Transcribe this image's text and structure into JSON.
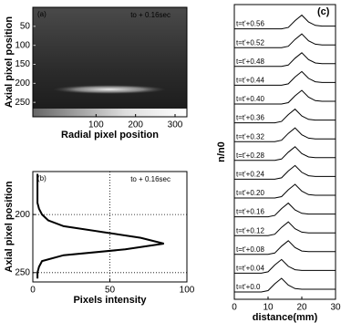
{
  "chart_data": [
    {
      "type": "image",
      "label": "(a)",
      "annotation": "to + 0.16sec",
      "xlabel": "Radial pixel position",
      "ylabel": "Axial pixel position",
      "xlim": [
        -60,
        330
      ],
      "ylim": [
        0,
        288
      ],
      "y_inverted": true,
      "xticks": [
        100,
        200,
        300
      ],
      "yticks": [
        50,
        100,
        150,
        200,
        250
      ]
    },
    {
      "type": "profile",
      "label": "(b)",
      "annotation": "to + 0.16sec",
      "xlabel": "Pixels intensity",
      "ylabel": "Axial pixel position",
      "xlim": [
        0,
        100
      ],
      "xticks": [
        0,
        50,
        100
      ],
      "ylim": [
        163,
        258
      ],
      "yticks": [
        200,
        250
      ],
      "y_inverted": true,
      "grid": true,
      "color": "#000000",
      "y": [
        165,
        170,
        175,
        180,
        185,
        190,
        195,
        200,
        205,
        210,
        215,
        220,
        225,
        230,
        235,
        240,
        245,
        250,
        255
      ],
      "values": [
        3,
        3,
        3,
        3,
        3,
        3,
        4,
        6,
        10,
        20,
        45,
        70,
        85,
        60,
        20,
        6,
        4,
        3,
        3
      ]
    },
    {
      "type": "ridgeline",
      "label": "(c)",
      "xlabel": "distance(mm)",
      "ylabel": "n/n0",
      "xlim": [
        0,
        30
      ],
      "xticks": [
        0,
        10,
        20,
        30
      ],
      "color": "#000000",
      "x": [
        0,
        2,
        4,
        6,
        8,
        10,
        12,
        14,
        16,
        18,
        20,
        22,
        24,
        26,
        28,
        30
      ],
      "series": [
        {
          "name": "t=t'+0.0",
          "values": [
            0,
            0,
            0,
            0,
            0,
            0.1,
            0.6,
            1,
            0.5,
            0.25,
            0.2,
            0.2,
            0.2,
            0.2,
            0.2,
            0.2
          ]
        },
        {
          "name": "t=t'+0.04",
          "values": [
            0,
            0,
            0,
            0,
            0,
            0.1,
            0.6,
            1,
            0.5,
            0.25,
            0.2,
            0.2,
            0.2,
            0.2,
            0.2,
            0.2
          ]
        },
        {
          "name": "t=t'+0.08",
          "values": [
            0,
            0,
            0,
            0,
            0,
            0,
            0.1,
            0.6,
            1,
            0.5,
            0.25,
            0.2,
            0.2,
            0.2,
            0.2,
            0.2
          ]
        },
        {
          "name": "t=t'+0.12",
          "values": [
            0,
            0,
            0,
            0,
            0,
            0,
            0.1,
            0.6,
            1,
            0.5,
            0.25,
            0.2,
            0.2,
            0.2,
            0.2,
            0.2
          ]
        },
        {
          "name": "t=t'+0.16",
          "values": [
            0,
            0,
            0,
            0,
            0,
            0,
            0.1,
            0.6,
            1,
            0.5,
            0.25,
            0.2,
            0.2,
            0.2,
            0.2,
            0.2
          ]
        },
        {
          "name": "t=t'+0.20",
          "values": [
            0,
            0,
            0,
            0,
            0,
            0,
            0,
            0.1,
            0.6,
            1,
            0.5,
            0.25,
            0.2,
            0.2,
            0.2,
            0.2
          ]
        },
        {
          "name": "t=t'+0.24",
          "values": [
            0,
            0,
            0,
            0,
            0,
            0,
            0,
            0.1,
            0.6,
            1,
            0.5,
            0.25,
            0.2,
            0.2,
            0.2,
            0.2
          ]
        },
        {
          "name": "t=t'+0.28",
          "values": [
            0,
            0,
            0,
            0,
            0,
            0,
            0,
            0.1,
            0.6,
            1,
            0.5,
            0.25,
            0.2,
            0.2,
            0.2,
            0.2
          ]
        },
        {
          "name": "t=t'+0.32",
          "values": [
            0,
            0,
            0,
            0,
            0,
            0,
            0,
            0.1,
            0.6,
            1,
            0.5,
            0.25,
            0.2,
            0.2,
            0.2,
            0.2
          ]
        },
        {
          "name": "t=t'+0.36",
          "values": [
            0,
            0,
            0,
            0,
            0,
            0,
            0,
            0.1,
            0.6,
            1,
            0.5,
            0.25,
            0.2,
            0.2,
            0.2,
            0.2
          ]
        },
        {
          "name": "t=t'+0.40",
          "values": [
            0,
            0,
            0,
            0,
            0,
            0,
            0,
            0,
            0.1,
            0.6,
            1,
            0.5,
            0.25,
            0.2,
            0.2,
            0.2
          ]
        },
        {
          "name": "t=t'+0.44",
          "values": [
            0,
            0,
            0,
            0,
            0,
            0,
            0,
            0,
            0.1,
            0.6,
            1,
            0.5,
            0.25,
            0.2,
            0.2,
            0.2
          ]
        },
        {
          "name": "t=t'+0.48",
          "values": [
            0,
            0,
            0,
            0,
            0,
            0,
            0,
            0,
            0.1,
            0.6,
            1,
            0.5,
            0.25,
            0.2,
            0.2,
            0.2
          ]
        },
        {
          "name": "t=t'+0.52",
          "values": [
            0,
            0,
            0,
            0,
            0,
            0,
            0,
            0,
            0.1,
            0.6,
            1,
            0.5,
            0.25,
            0.2,
            0.2,
            0.2
          ]
        },
        {
          "name": "t=t'+0.56",
          "values": [
            0,
            0,
            0,
            0,
            0,
            0,
            0,
            0,
            0.1,
            0.6,
            1,
            0.5,
            0.25,
            0.2,
            0.2,
            0.2
          ]
        }
      ]
    }
  ]
}
